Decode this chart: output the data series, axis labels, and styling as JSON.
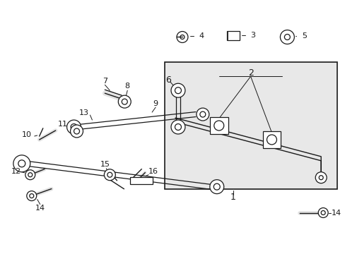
{
  "bg_color": "#ffffff",
  "box_bg": "#e8e8e8",
  "lc": "#1a1a1a",
  "figsize": [
    4.89,
    3.6
  ],
  "dpi": 100
}
